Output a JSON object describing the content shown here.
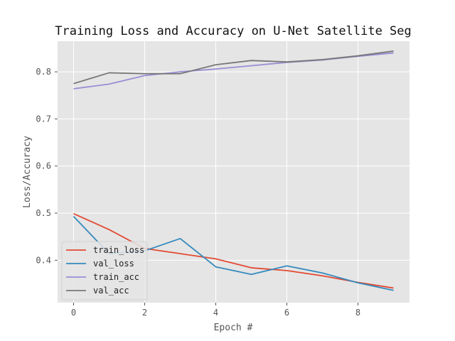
{
  "chart_data": {
    "type": "line",
    "title": "Training Loss and Accuracy on U-Net Satellite Seg",
    "xlabel": "Epoch #",
    "ylabel": "Loss/Accuracy",
    "xlim": [
      -0.45,
      9.45
    ],
    "ylim": [
      0.31,
      0.865
    ],
    "xticks": [
      0,
      2,
      4,
      6,
      8
    ],
    "yticks": [
      0.4,
      0.5,
      0.6,
      0.7,
      0.8
    ],
    "grid": true,
    "legend_position": "lower-left",
    "x": [
      0,
      1,
      2,
      3,
      4,
      5,
      6,
      7,
      8,
      9
    ],
    "series": [
      {
        "name": "train_loss",
        "color": "#e24a33",
        "values": [
          0.499,
          0.465,
          0.425,
          0.414,
          0.403,
          0.384,
          0.378,
          0.367,
          0.353,
          0.341
        ]
      },
      {
        "name": "val_loss",
        "color": "#348abd",
        "values": [
          0.493,
          0.414,
          0.42,
          0.446,
          0.386,
          0.37,
          0.388,
          0.373,
          0.352,
          0.336
        ]
      },
      {
        "name": "train_acc",
        "color": "#988ed5",
        "values": [
          0.764,
          0.774,
          0.792,
          0.8,
          0.806,
          0.813,
          0.82,
          0.825,
          0.833,
          0.84
        ]
      },
      {
        "name": "val_acc",
        "color": "#777777",
        "values": [
          0.775,
          0.798,
          0.796,
          0.796,
          0.815,
          0.824,
          0.821,
          0.826,
          0.834,
          0.844
        ]
      }
    ]
  }
}
